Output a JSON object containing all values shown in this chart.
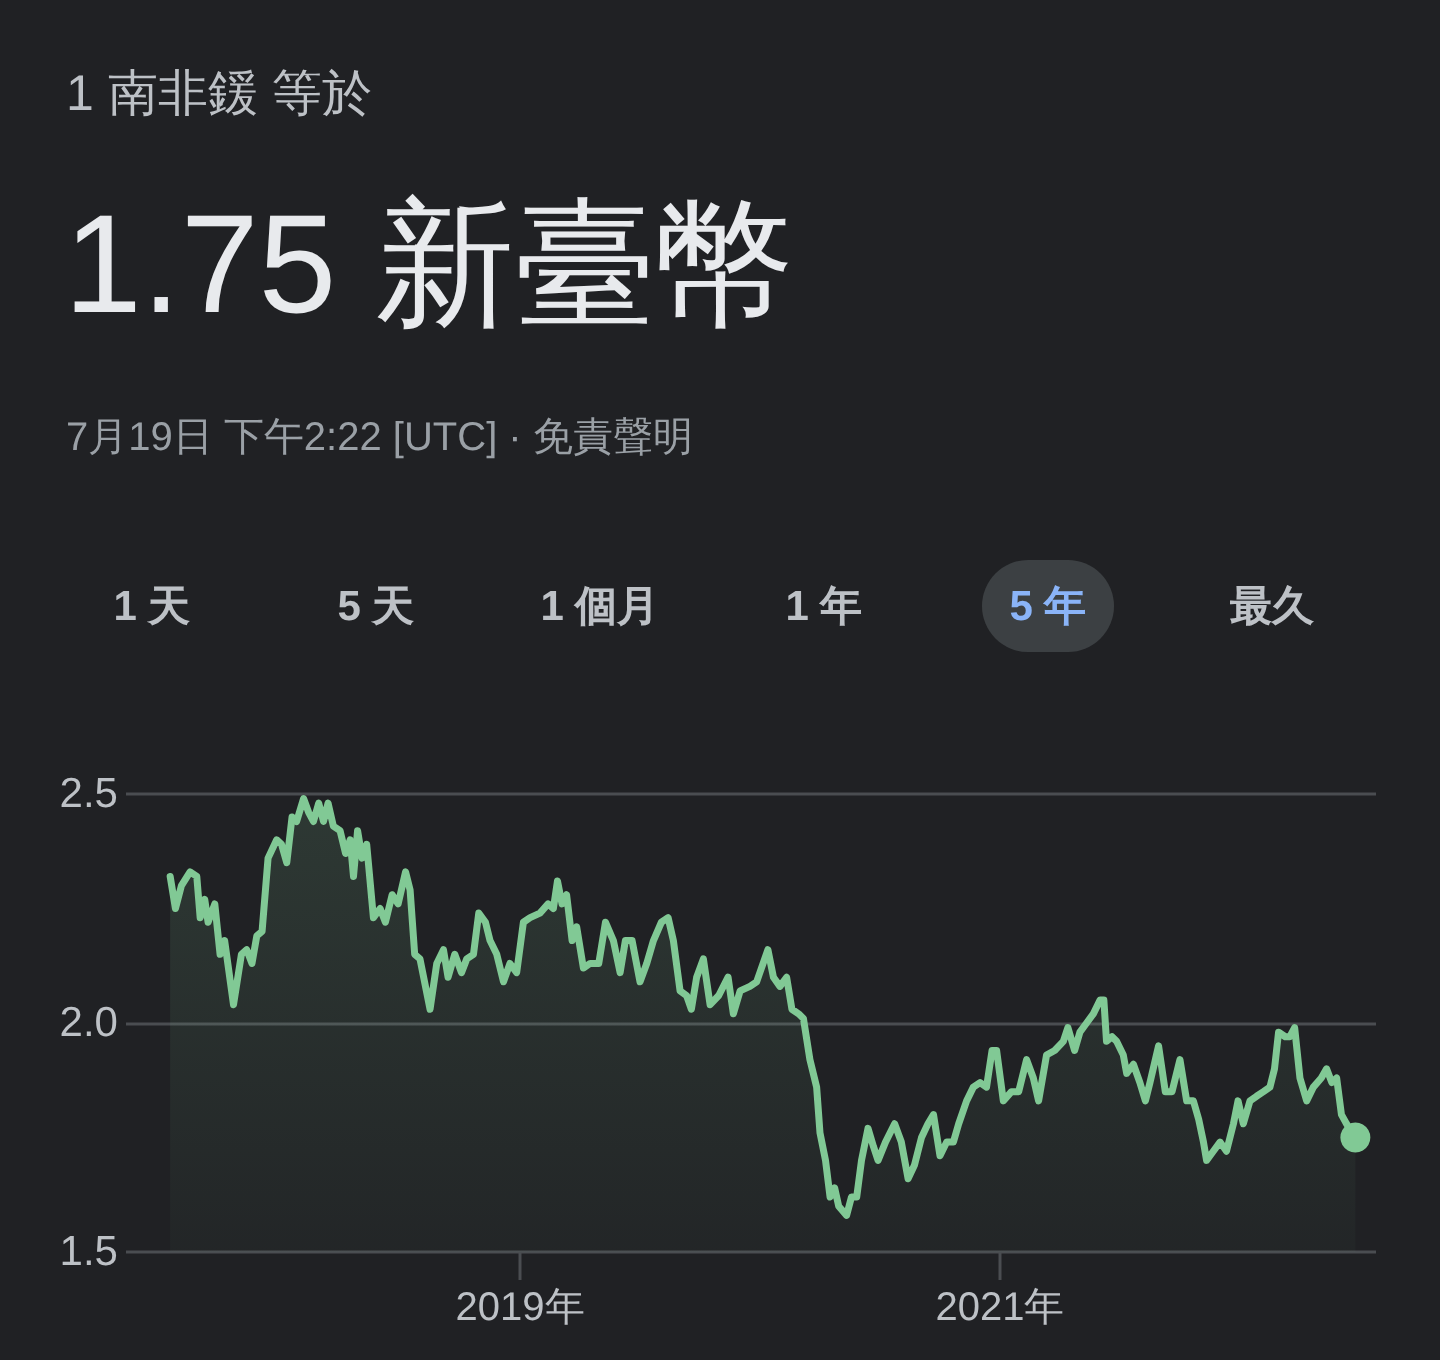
{
  "chart_data": {
    "type": "area",
    "subtitle": "1 南非鍰 等於",
    "title": "1.75 新臺幣",
    "annotations": [
      "7月19日 下午2:22 [UTC] · 免責聲明",
      "1 天",
      "5 天",
      "1 個月",
      "1 年",
      "5 年",
      "最久"
    ],
    "x": [
      2017.542,
      2017.564,
      2017.589,
      2017.625,
      2017.653,
      2017.667,
      2017.686,
      2017.7,
      2017.728,
      2017.75,
      2017.769,
      2017.806,
      2017.839,
      2017.861,
      2017.883,
      2017.903,
      2017.925,
      2017.95,
      2017.986,
      2018.006,
      2018.028,
      2018.05,
      2018.069,
      2018.098,
      2018.119,
      2018.139,
      2018.161,
      2018.181,
      2018.2,
      2018.222,
      2018.25,
      2018.273,
      2018.292,
      2018.306,
      2018.323,
      2018.342,
      2018.361,
      2018.389,
      2018.417,
      2018.439,
      2018.467,
      2018.492,
      2018.523,
      2018.542,
      2018.561,
      2018.583,
      2018.625,
      2018.653,
      2018.681,
      2018.7,
      2018.728,
      2018.756,
      2018.778,
      2018.806,
      2018.828,
      2018.856,
      2018.875,
      2018.903,
      2018.931,
      2018.958,
      2018.986,
      2019.014,
      2019.042,
      2019.083,
      2019.117,
      2019.139,
      2019.156,
      2019.175,
      2019.194,
      2019.217,
      2019.236,
      2019.264,
      2019.292,
      2019.328,
      2019.356,
      2019.389,
      2019.417,
      2019.439,
      2019.467,
      2019.5,
      2019.528,
      2019.556,
      2019.589,
      2019.617,
      2019.639,
      2019.667,
      2019.694,
      2019.714,
      2019.736,
      2019.764,
      2019.792,
      2019.828,
      2019.867,
      2019.889,
      2019.917,
      2019.958,
      2019.986,
      2020.006,
      2020.033,
      2020.056,
      2020.083,
      2020.111,
      2020.133,
      2020.161,
      2020.181,
      2020.208,
      2020.236,
      2020.25,
      2020.273,
      2020.292,
      2020.311,
      2020.328,
      2020.361,
      2020.381,
      2020.403,
      2020.423,
      2020.45,
      2020.473,
      2020.492,
      2020.523,
      2020.561,
      2020.589,
      2020.617,
      2020.644,
      2020.673,
      2020.7,
      2020.723,
      2020.75,
      2020.778,
      2020.806,
      2020.828,
      2020.861,
      2020.889,
      2020.917,
      2020.944,
      2020.967,
      2020.986,
      2021.014,
      2021.048,
      2021.078,
      2021.111,
      2021.139,
      2021.161,
      2021.194,
      2021.228,
      2021.264,
      2021.283,
      2021.311,
      2021.333,
      2021.361,
      2021.389,
      2021.417,
      2021.433,
      2021.444,
      2021.467,
      2021.486,
      2021.514,
      2021.528,
      2021.556,
      2021.583,
      2021.606,
      2021.625,
      2021.661,
      2021.689,
      2021.717,
      2021.75,
      2021.778,
      2021.806,
      2021.828,
      2021.848,
      2021.861,
      2021.889,
      2021.917,
      2021.944,
      2021.973,
      2021.992,
      2022.014,
      2022.042,
      2022.069,
      2022.098,
      2022.125,
      2022.144,
      2022.161,
      2022.189,
      2022.208,
      2022.228,
      2022.25,
      2022.278,
      2022.306,
      2022.339,
      2022.361,
      2022.383,
      2022.403,
      2022.423,
      2022.444,
      2022.481
    ],
    "values": [
      2.32,
      2.25,
      2.3,
      2.33,
      2.32,
      2.23,
      2.27,
      2.22,
      2.26,
      2.15,
      2.18,
      2.04,
      2.15,
      2.16,
      2.13,
      2.19,
      2.2,
      2.36,
      2.4,
      2.39,
      2.35,
      2.45,
      2.44,
      2.49,
      2.46,
      2.44,
      2.48,
      2.44,
      2.48,
      2.43,
      2.42,
      2.37,
      2.4,
      2.32,
      2.42,
      2.36,
      2.39,
      2.23,
      2.25,
      2.22,
      2.28,
      2.26,
      2.33,
      2.29,
      2.15,
      2.14,
      2.03,
      2.13,
      2.16,
      2.1,
      2.15,
      2.11,
      2.14,
      2.15,
      2.24,
      2.22,
      2.18,
      2.15,
      2.09,
      2.13,
      2.11,
      2.22,
      2.23,
      2.24,
      2.26,
      2.25,
      2.31,
      2.26,
      2.28,
      2.18,
      2.21,
      2.12,
      2.13,
      2.13,
      2.22,
      2.18,
      2.11,
      2.18,
      2.18,
      2.09,
      2.13,
      2.18,
      2.22,
      2.23,
      2.18,
      2.07,
      2.06,
      2.03,
      2.1,
      2.14,
      2.04,
      2.06,
      2.1,
      2.02,
      2.07,
      2.08,
      2.09,
      2.12,
      2.16,
      2.1,
      2.08,
      2.1,
      2.03,
      2.02,
      2.01,
      1.92,
      1.86,
      1.76,
      1.7,
      1.62,
      1.64,
      1.6,
      1.58,
      1.62,
      1.62,
      1.7,
      1.77,
      1.73,
      1.7,
      1.74,
      1.78,
      1.74,
      1.66,
      1.69,
      1.75,
      1.78,
      1.8,
      1.71,
      1.74,
      1.74,
      1.78,
      1.83,
      1.86,
      1.87,
      1.86,
      1.94,
      1.94,
      1.83,
      1.85,
      1.85,
      1.92,
      1.88,
      1.83,
      1.93,
      1.94,
      1.96,
      1.99,
      1.94,
      1.98,
      2.0,
      2.02,
      2.05,
      2.05,
      1.96,
      1.97,
      1.96,
      1.93,
      1.89,
      1.91,
      1.87,
      1.83,
      1.87,
      1.95,
      1.85,
      1.85,
      1.92,
      1.83,
      1.83,
      1.79,
      1.74,
      1.7,
      1.72,
      1.74,
      1.72,
      1.78,
      1.83,
      1.78,
      1.83,
      1.84,
      1.85,
      1.86,
      1.9,
      1.98,
      1.97,
      1.97,
      1.99,
      1.88,
      1.83,
      1.86,
      1.88,
      1.9,
      1.87,
      1.88,
      1.8,
      1.78,
      1.75
    ],
    "color": "#81c995",
    "xlim": [
      2017.358,
      2022.567
    ],
    "xticks": [
      {
        "value": 2019,
        "label": "2019年"
      },
      {
        "value": 2021,
        "label": "2021年"
      }
    ],
    "ylim": [
      1.5,
      2.5
    ],
    "yticks": [
      1.5,
      {
        "value": 2,
        "label": "2.0"
      },
      2.5
    ],
    "grid": "y"
  }
}
